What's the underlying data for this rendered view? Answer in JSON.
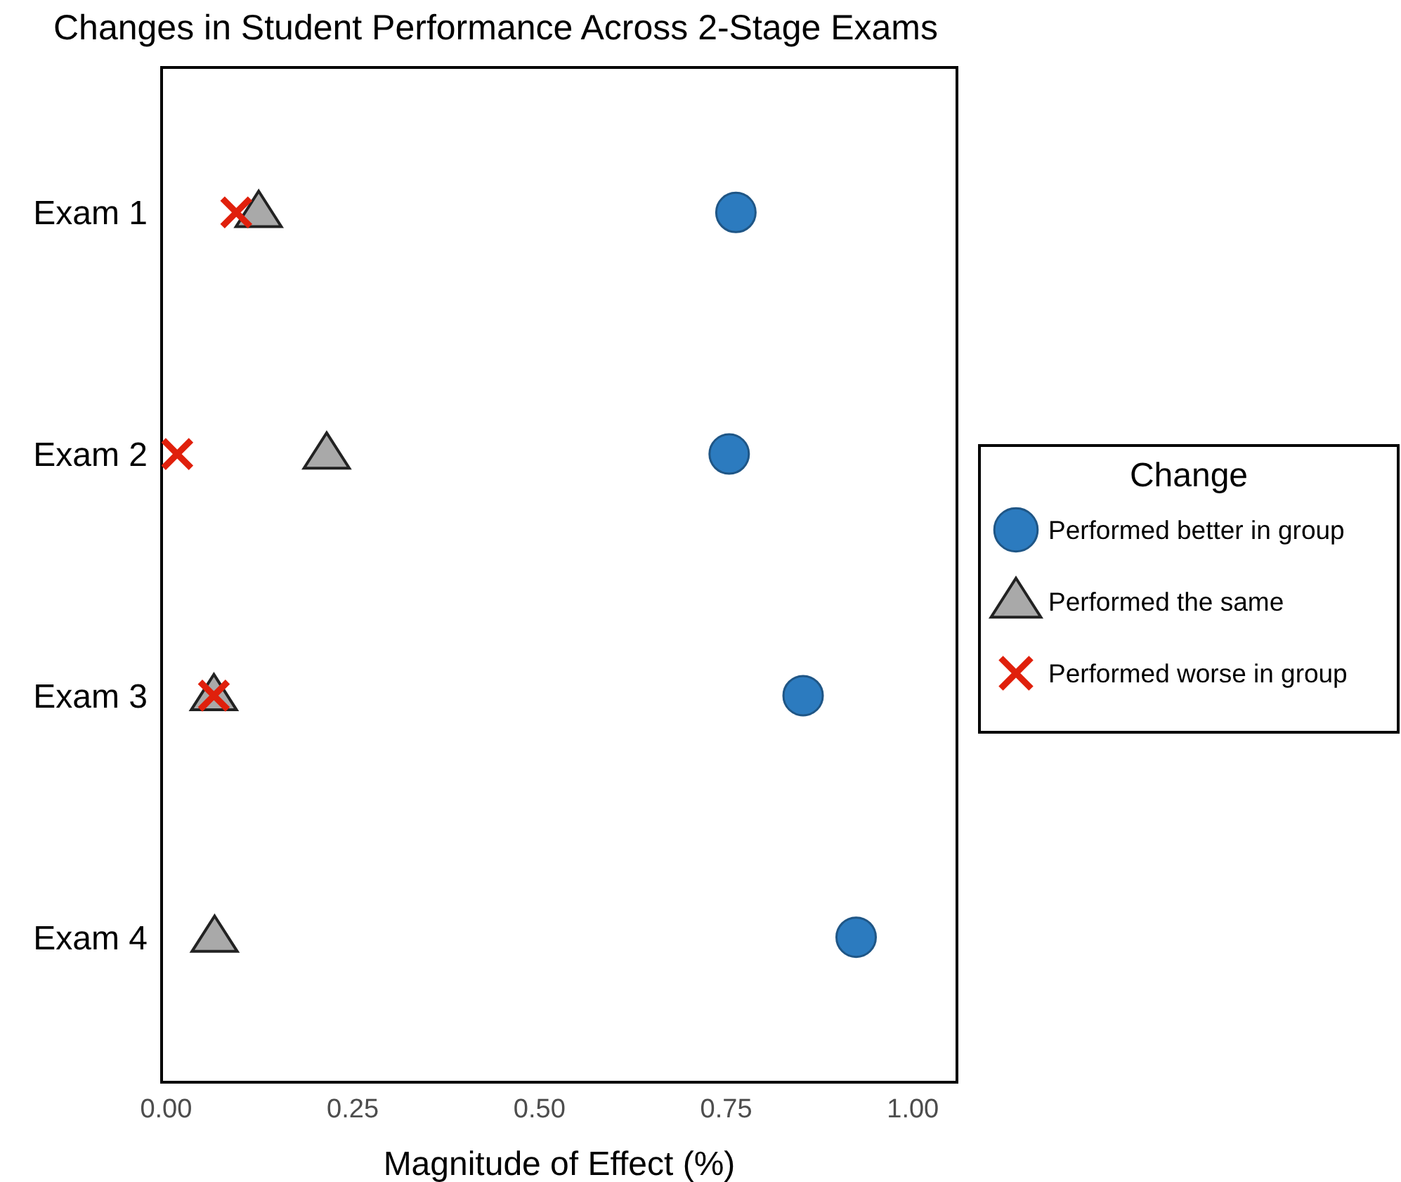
{
  "chart_data": {
    "type": "scatter",
    "title": "Changes in Student Performance Across 2-Stage Exams",
    "xlabel": "Magnitude of Effect (%)",
    "legend_title": "Change",
    "legend": "right",
    "grid": false,
    "orientation": "horizontal",
    "categories": [
      "Exam 1",
      "Exam 2",
      "Exam 3",
      "Exam 4"
    ],
    "xlim": [
      -0.006,
      1.059
    ],
    "xticks": [
      {
        "value": 0,
        "label": "0.00"
      },
      {
        "value": 0.25,
        "label": "0.25"
      },
      {
        "value": 0.5,
        "label": "0.50"
      },
      {
        "value": 0.75,
        "label": "0.75"
      },
      {
        "value": 1,
        "label": "1.00"
      }
    ],
    "series": [
      {
        "name": "Performed better in group",
        "color": "#2c7bbf",
        "marker": "circle",
        "values": [
          0.763,
          0.754,
          0.853,
          0.924
        ]
      },
      {
        "name": "Performed the same",
        "color": "#a9a9a9",
        "marker": "triangle",
        "values": [
          0.124,
          0.215,
          0.064,
          0.065
        ]
      },
      {
        "name": "Performed worse in group",
        "color": "#e0200c",
        "marker": "cross",
        "values": [
          0.094,
          0.015,
          0.064,
          null
        ]
      }
    ]
  }
}
